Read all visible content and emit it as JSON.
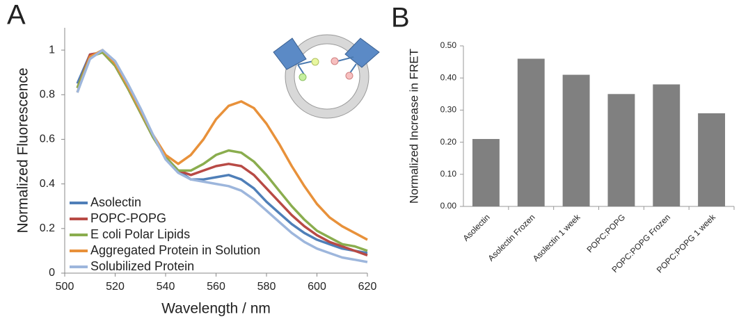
{
  "chart_data": [
    {
      "type": "line",
      "panel": "A",
      "xlabel": "Wavelength / nm",
      "ylabel": "Normalized Fluorescence",
      "x": [
        505,
        510,
        515,
        520,
        525,
        530,
        535,
        540,
        545,
        550,
        555,
        560,
        565,
        570,
        575,
        580,
        585,
        590,
        595,
        600,
        605,
        610,
        615,
        620
      ],
      "series": [
        {
          "name": "Asolectin",
          "color": "#4f7fb8",
          "values": [
            0.85,
            0.98,
            0.99,
            0.93,
            0.83,
            0.72,
            0.61,
            0.52,
            0.46,
            0.42,
            0.42,
            0.43,
            0.44,
            0.42,
            0.38,
            0.32,
            0.27,
            0.22,
            0.18,
            0.15,
            0.13,
            0.11,
            0.1,
            0.09
          ]
        },
        {
          "name": "POPC-POPG",
          "color": "#b84a45",
          "values": [
            0.83,
            0.98,
            0.99,
            0.93,
            0.83,
            0.72,
            0.61,
            0.52,
            0.46,
            0.44,
            0.46,
            0.48,
            0.49,
            0.48,
            0.44,
            0.38,
            0.32,
            0.26,
            0.21,
            0.17,
            0.14,
            0.12,
            0.1,
            0.08
          ]
        },
        {
          "name": "E coli Polar Lipids",
          "color": "#8aad4e",
          "values": [
            0.83,
            0.97,
            0.99,
            0.93,
            0.83,
            0.72,
            0.61,
            0.52,
            0.46,
            0.46,
            0.49,
            0.53,
            0.55,
            0.54,
            0.5,
            0.44,
            0.37,
            0.3,
            0.24,
            0.19,
            0.16,
            0.13,
            0.12,
            0.1
          ]
        },
        {
          "name": "Aggregated Protein in Solution",
          "color": "#e8913a",
          "values": [
            0.81,
            0.97,
            1.0,
            0.94,
            0.84,
            0.73,
            0.62,
            0.53,
            0.49,
            0.53,
            0.6,
            0.69,
            0.75,
            0.77,
            0.74,
            0.67,
            0.58,
            0.48,
            0.39,
            0.31,
            0.25,
            0.21,
            0.18,
            0.15
          ]
        },
        {
          "name": "Solubilized Protein",
          "color": "#9db6dc",
          "values": [
            0.81,
            0.96,
            1.0,
            0.95,
            0.85,
            0.74,
            0.62,
            0.51,
            0.45,
            0.42,
            0.41,
            0.4,
            0.39,
            0.37,
            0.33,
            0.28,
            0.23,
            0.18,
            0.14,
            0.11,
            0.09,
            0.07,
            0.06,
            0.05
          ]
        }
      ],
      "xlim": [
        500,
        620
      ],
      "xticks": [
        500,
        520,
        540,
        560,
        580,
        600,
        620
      ],
      "ylim": [
        0,
        1.1
      ],
      "yticks": [
        0,
        0.2,
        0.4,
        0.6,
        0.8,
        1
      ],
      "legend": "lower left"
    },
    {
      "type": "bar",
      "panel": "B",
      "ylabel": "Normalized Increase in FRET",
      "categories": [
        "Asolectin",
        "Asolectin Frozen",
        "Asolectin 1 week",
        "POPC:POPG",
        "POPC:POPG Frozen",
        "POPC:POPG 1 week"
      ],
      "values": [
        0.21,
        0.46,
        0.41,
        0.35,
        0.38,
        0.29
      ],
      "color": "#808080",
      "ylim": [
        0,
        0.5
      ],
      "yticks": [
        {
          "value": 0,
          "label": "0.00"
        },
        {
          "value": 0.1,
          "label": "0.10"
        },
        {
          "value": 0.2,
          "label": "0.20"
        },
        {
          "value": 0.3,
          "label": "0.30"
        },
        {
          "value": 0.4,
          "label": "0.40"
        },
        {
          "value": 0.5,
          "label": "0.50"
        }
      ]
    }
  ]
}
